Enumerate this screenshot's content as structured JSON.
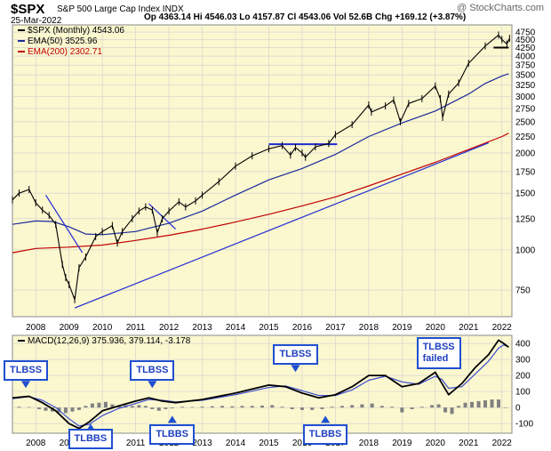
{
  "header": {
    "symbol": "$SPX",
    "name": "S&P 500 Large Cap Index INDX",
    "date": "25-Mar-2022",
    "ohlc": "Op 4363.14  Hi 4546.03  Lo 4157.87  Cl 4543.06  Vol 52.6B  Chg +169.12 (+3.87%)",
    "copyright": "@ StockCharts.com"
  },
  "legend": [
    {
      "text": "$SPX (Monthly) 4543.06",
      "color": "#000000"
    },
    {
      "text": "EMA(50) 3525.96",
      "color": "#1b2a9a"
    },
    {
      "text": "EMA(200) 2302.71",
      "color": "#c00000"
    }
  ],
  "macd_legend": "MACD(12,26,9) 375.936, 379.114, -3.178",
  "callouts": [
    {
      "text": "TLBSS",
      "x": 2007.7,
      "y": 110
    },
    {
      "text": "TLBBS",
      "x": 2009.65,
      "y": -90
    },
    {
      "text": "TLBSS",
      "x": 2011.5,
      "y": 110
    },
    {
      "text": "TLBBS",
      "x": 2012.1,
      "y": -40
    },
    {
      "text": "TLBSS",
      "x": 2015.8,
      "y": 210
    },
    {
      "text": "TLBBS",
      "x": 2016.7,
      "y": -40
    },
    {
      "text": "TLBSS\nfailed",
      "x": 2020.1,
      "y": 260
    }
  ],
  "colors": {
    "panel_bg": "#fbf7cf",
    "grid": "#cfcfcf",
    "price": "#000000",
    "ema50": "#1b2a9a",
    "ema200": "#c00000",
    "trend": "#1f2ad0",
    "macd": "#000000",
    "signal": "#3c4ecf",
    "histogram": "#808080"
  },
  "chart_data": [
    {
      "type": "line",
      "title": "$SPX (Monthly)",
      "xlim": [
        2007.3,
        2022.3
      ],
      "ylim": [
        620,
        5000
      ],
      "y_scale": "log",
      "x_ticks": [
        2008,
        2009,
        2010,
        2011,
        2012,
        2013,
        2014,
        2015,
        2016,
        2017,
        2018,
        2019,
        2020,
        2021,
        2022
      ],
      "y_ticks": [
        750,
        1000,
        1250,
        1500,
        1750,
        2000,
        2250,
        2500,
        2750,
        3000,
        3250,
        3500,
        3750,
        4000,
        4250,
        4500,
        4750
      ],
      "grid": true,
      "series": [
        {
          "name": "$SPX (Monthly)",
          "x": [
            2007.3,
            2007.5,
            2007.8,
            2008.0,
            2008.2,
            2008.4,
            2008.6,
            2008.8,
            2008.9,
            2009.0,
            2009.17,
            2009.3,
            2009.5,
            2009.8,
            2010.0,
            2010.3,
            2010.45,
            2010.6,
            2010.9,
            2011.1,
            2011.3,
            2011.5,
            2011.65,
            2011.8,
            2012.0,
            2012.3,
            2012.5,
            2012.8,
            2013.0,
            2013.5,
            2014.0,
            2014.5,
            2015.0,
            2015.4,
            2015.65,
            2015.8,
            2016.0,
            2016.1,
            2016.4,
            2016.8,
            2017.0,
            2017.5,
            2018.0,
            2018.08,
            2018.5,
            2018.75,
            2018.95,
            2019.2,
            2019.6,
            2020.0,
            2020.15,
            2020.22,
            2020.4,
            2020.7,
            2021.0,
            2021.5,
            2021.9,
            2022.0,
            2022.15,
            2022.23
          ],
          "values": [
            1430,
            1500,
            1540,
            1400,
            1330,
            1280,
            1200,
            900,
            820,
            780,
            700,
            880,
            950,
            1100,
            1140,
            1190,
            1050,
            1140,
            1250,
            1320,
            1360,
            1330,
            1130,
            1250,
            1320,
            1410,
            1360,
            1420,
            1480,
            1630,
            1820,
            1960,
            2060,
            2110,
            1970,
            2080,
            2000,
            1940,
            2090,
            2140,
            2280,
            2450,
            2820,
            2680,
            2800,
            2920,
            2500,
            2850,
            2950,
            3230,
            2950,
            2580,
            3050,
            3300,
            3800,
            4300,
            4650,
            4500,
            4360,
            4543
          ]
        },
        {
          "name": "EMA(50)",
          "x": [
            2007.3,
            2008.0,
            2008.5,
            2009.0,
            2009.5,
            2010.0,
            2011.0,
            2012.0,
            2013.0,
            2014.0,
            2015.0,
            2016.0,
            2017.0,
            2018.0,
            2019.0,
            2020.0,
            2021.0,
            2021.5,
            2022.0,
            2022.2
          ],
          "values": [
            1200,
            1230,
            1225,
            1180,
            1120,
            1115,
            1140,
            1210,
            1320,
            1480,
            1650,
            1790,
            1980,
            2250,
            2480,
            2700,
            3050,
            3290,
            3470,
            3526
          ]
        },
        {
          "name": "EMA(200)",
          "x": [
            2007.3,
            2008.0,
            2009.0,
            2010.0,
            2011.0,
            2012.0,
            2013.0,
            2014.0,
            2015.0,
            2016.0,
            2017.0,
            2018.0,
            2019.0,
            2020.0,
            2021.0,
            2022.0,
            2022.2
          ],
          "values": [
            980,
            1010,
            1020,
            1035,
            1070,
            1110,
            1160,
            1220,
            1290,
            1370,
            1460,
            1580,
            1720,
            1870,
            2050,
            2250,
            2303
          ]
        },
        {
          "name": "Trendline 2009-2021",
          "x": [
            2009.17,
            2021.6
          ],
          "values": [
            660,
            2150
          ]
        },
        {
          "name": "Trendline 2007-2009",
          "x": [
            2008.3,
            2009.4
          ],
          "values": [
            1480,
            980
          ]
        },
        {
          "name": "Trendline 2011-2012",
          "x": [
            2011.4,
            2012.2
          ],
          "values": [
            1390,
            1160
          ]
        },
        {
          "name": "Resistance 2015-2016",
          "x": [
            2015.0,
            2017.05
          ],
          "values": [
            2130,
            2130
          ]
        },
        {
          "name": "Resistance 2021-2022",
          "x": [
            2021.75,
            2022.2
          ],
          "values": [
            4250,
            4250
          ]
        }
      ]
    },
    {
      "type": "line",
      "title": "MACD(12,26,9)",
      "xlim": [
        2007.3,
        2022.3
      ],
      "ylim": [
        -160,
        450
      ],
      "y_ticks": [
        -100,
        0,
        100,
        200,
        300,
        400
      ],
      "x_ticks": [
        2008,
        2009,
        2010,
        2011,
        2012,
        2013,
        2014,
        2015,
        2016,
        2017,
        2018,
        2019,
        2020,
        2021,
        2022
      ],
      "grid": true,
      "series": [
        {
          "name": "MACD",
          "x": [
            2007.3,
            2007.8,
            2008.2,
            2008.6,
            2009.0,
            2009.3,
            2009.6,
            2010.0,
            2010.5,
            2011.0,
            2011.4,
            2011.8,
            2012.2,
            2013.0,
            2014.0,
            2015.0,
            2015.5,
            2016.0,
            2016.5,
            2017.0,
            2017.5,
            2018.0,
            2018.5,
            2019.0,
            2019.5,
            2020.0,
            2020.2,
            2020.4,
            2020.8,
            2021.2,
            2021.6,
            2021.9,
            2022.05,
            2022.2
          ],
          "values": [
            60,
            70,
            30,
            -20,
            -100,
            -130,
            -90,
            -20,
            10,
            40,
            60,
            40,
            30,
            50,
            90,
            140,
            130,
            90,
            60,
            80,
            130,
            200,
            200,
            130,
            150,
            220,
            150,
            80,
            150,
            250,
            330,
            420,
            400,
            376
          ]
        },
        {
          "name": "Signal",
          "x": [
            2007.3,
            2007.8,
            2008.2,
            2008.6,
            2009.0,
            2009.3,
            2009.6,
            2010.0,
            2010.5,
            2011.0,
            2011.4,
            2011.8,
            2012.2,
            2013.0,
            2014.0,
            2015.0,
            2015.5,
            2016.0,
            2016.5,
            2017.0,
            2017.5,
            2018.0,
            2018.5,
            2019.0,
            2019.5,
            2020.0,
            2020.2,
            2020.4,
            2020.8,
            2021.2,
            2021.6,
            2021.9,
            2022.05,
            2022.2
          ],
          "values": [
            55,
            68,
            45,
            0,
            -70,
            -115,
            -105,
            -50,
            -5,
            25,
            50,
            45,
            35,
            45,
            80,
            125,
            135,
            105,
            75,
            75,
            110,
            170,
            195,
            160,
            145,
            195,
            175,
            120,
            130,
            210,
            290,
            370,
            390,
            379
          ]
        },
        {
          "name": "Histogram",
          "x": [
            2007.5,
            2007.8,
            2008.1,
            2008.3,
            2008.5,
            2008.7,
            2008.9,
            2009.1,
            2009.3,
            2009.5,
            2009.7,
            2009.9,
            2010.1,
            2010.3,
            2010.5,
            2010.7,
            2010.9,
            2011.1,
            2011.3,
            2011.5,
            2011.7,
            2011.9,
            2012.1,
            2012.4,
            2012.7,
            2013.0,
            2013.3,
            2013.6,
            2013.9,
            2014.2,
            2014.5,
            2014.8,
            2015.1,
            2015.4,
            2015.7,
            2016.0,
            2016.3,
            2016.6,
            2016.9,
            2017.2,
            2017.5,
            2017.8,
            2018.1,
            2018.4,
            2018.7,
            2019.0,
            2019.3,
            2019.6,
            2019.9,
            2020.1,
            2020.3,
            2020.5,
            2020.7,
            2020.9,
            2021.1,
            2021.3,
            2021.5,
            2021.7,
            2021.9,
            2022.1
          ],
          "values": [
            5,
            3,
            -10,
            -20,
            -25,
            -30,
            -35,
            -25,
            -15,
            10,
            25,
            30,
            35,
            20,
            10,
            15,
            10,
            15,
            10,
            -10,
            -20,
            -10,
            -5,
            5,
            3,
            5,
            8,
            10,
            8,
            10,
            10,
            12,
            15,
            5,
            -10,
            -15,
            -15,
            -10,
            5,
            10,
            15,
            20,
            25,
            10,
            5,
            -30,
            -10,
            5,
            15,
            20,
            -30,
            -40,
            10,
            30,
            35,
            40,
            45,
            50,
            50,
            -3
          ]
        }
      ]
    }
  ]
}
